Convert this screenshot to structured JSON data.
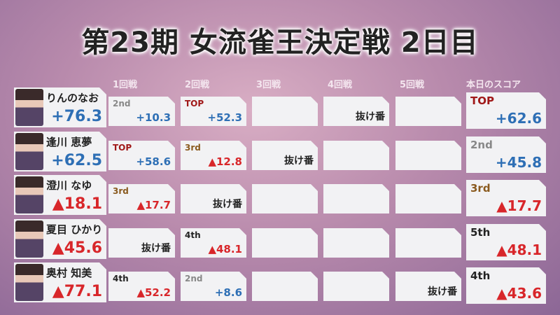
{
  "title": "第23期 女流雀王決定戦 2日目",
  "headers": [
    "1回戦",
    "2回戦",
    "3回戦",
    "4回戦",
    "5回戦",
    "本日のスコア"
  ],
  "bye_label": "抜け番",
  "colors": {
    "positive": "#2e6fb5",
    "negative": "#d8262a",
    "TOP": "#a01818",
    "2nd": "#888888",
    "3rd": "#8a5a1e",
    "4th": "#222222",
    "5th": "#222222"
  },
  "players": [
    {
      "name": "りんのなお",
      "total": "+76.3",
      "rounds": [
        {
          "rank": "2nd",
          "score": "+10.3"
        },
        {
          "rank": "TOP",
          "score": "+52.3"
        },
        null,
        {
          "bye": true
        },
        null
      ],
      "day": {
        "rank": "TOP",
        "score": "+62.6"
      }
    },
    {
      "name": "逢川 恵夢",
      "total": "+62.5",
      "rounds": [
        {
          "rank": "TOP",
          "score": "+58.6"
        },
        {
          "rank": "3rd",
          "score": "▲12.8"
        },
        {
          "bye": true
        },
        null,
        null
      ],
      "day": {
        "rank": "2nd",
        "score": "+45.8"
      }
    },
    {
      "name": "澄川 なゆ",
      "total": "▲18.1",
      "rounds": [
        {
          "rank": "3rd",
          "score": "▲17.7"
        },
        {
          "bye": true
        },
        null,
        null,
        null
      ],
      "day": {
        "rank": "3rd",
        "score": "▲17.7"
      }
    },
    {
      "name": "夏目 ひかり",
      "total": "▲45.6",
      "rounds": [
        {
          "bye": true
        },
        {
          "rank": "4th",
          "score": "▲48.1"
        },
        null,
        null,
        null
      ],
      "day": {
        "rank": "5th",
        "score": "▲48.1"
      }
    },
    {
      "name": "奥村 知美",
      "total": "▲77.1",
      "rounds": [
        {
          "rank": "4th",
          "score": "▲52.2"
        },
        {
          "rank": "2nd",
          "score": "+8.6"
        },
        null,
        null,
        {
          "bye": true
        }
      ],
      "day": {
        "rank": "4th",
        "score": "▲43.6"
      }
    }
  ]
}
